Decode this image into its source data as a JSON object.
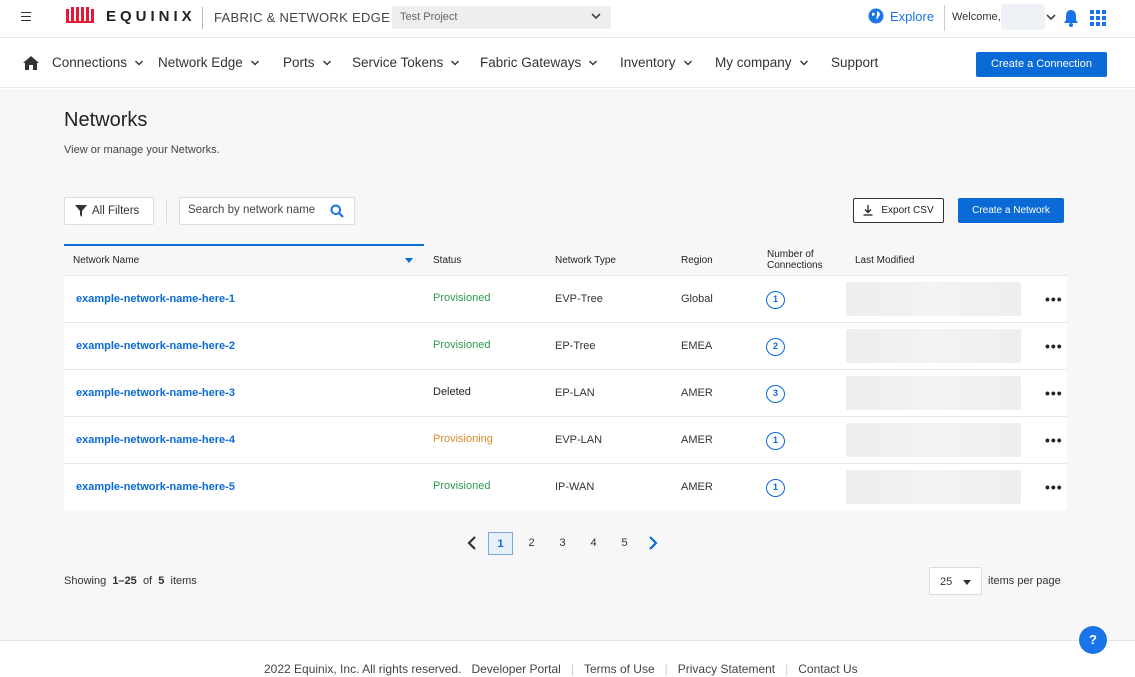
{
  "header": {
    "logo_text": "EQUINIX",
    "app_name": "FABRIC & NETWORK EDGE",
    "project": "Test Project",
    "explore_label": "Explore",
    "welcome_label": "Welcome,"
  },
  "nav": {
    "items": [
      {
        "label": "Connections",
        "has_menu": true
      },
      {
        "label": "Network Edge",
        "has_menu": true
      },
      {
        "label": "Ports",
        "has_menu": true
      },
      {
        "label": "Service Tokens",
        "has_menu": true
      },
      {
        "label": "Fabric Gateways",
        "has_menu": true
      },
      {
        "label": "Inventory",
        "has_menu": true
      },
      {
        "label": "My company",
        "has_menu": true
      },
      {
        "label": "Support",
        "has_menu": false
      }
    ],
    "create_connection_label": "Create a Connection"
  },
  "page": {
    "title": "Networks",
    "subtitle": "View or manage your Networks."
  },
  "toolbar": {
    "filters_label": "All Filters",
    "search_placeholder": "Search by network name",
    "export_label": "Export CSV",
    "create_network_label": "Create a Network"
  },
  "table": {
    "columns": [
      "Network Name",
      "Status",
      "Network Type",
      "Region",
      "Number of Connections",
      "Last Modified"
    ],
    "columns_line1": [
      "Network Name",
      "Status",
      "Network Type",
      "Region",
      "Number of",
      "Last Modified"
    ],
    "columns_line2": [
      "",
      "",
      "",
      "",
      "Connections",
      ""
    ],
    "rows": [
      {
        "name": "example-network-name-here-1",
        "status": "Provisioned",
        "type": "EVP-Tree",
        "region": "Global",
        "connections": "1"
      },
      {
        "name": "example-network-name-here-2",
        "status": "Provisioned",
        "type": "EP-Tree",
        "region": "EMEA",
        "connections": "2"
      },
      {
        "name": "example-network-name-here-3",
        "status": "Deleted",
        "type": "EP-LAN",
        "region": "AMER",
        "connections": "3"
      },
      {
        "name": "example-network-name-here-4",
        "status": "Provisioning",
        "type": "EVP-LAN",
        "region": "AMER",
        "connections": "1"
      },
      {
        "name": "example-network-name-here-5",
        "status": "Provisioned",
        "type": "IP-WAN",
        "region": "AMER",
        "connections": "1"
      }
    ],
    "row_menu_glyph": "•••"
  },
  "status_colors": {
    "Provisioned": "#2e9a4c",
    "Deleted": "#222222",
    "Provisioning": "#e0892a"
  },
  "pagination": {
    "pages": [
      "1",
      "2",
      "3",
      "4",
      "5"
    ],
    "current": "1",
    "showing_prefix": "Showing",
    "showing_range": "1–25",
    "showing_of": "of",
    "showing_total": "5",
    "showing_suffix": "items",
    "per_page": "25",
    "per_page_label": "items per page"
  },
  "help_label": "?",
  "footer": {
    "copyright": "2022 Equinix, Inc. All rights reserved.",
    "links": [
      "Developer Portal",
      "Terms of Use",
      "Privacy Statement",
      "Contact Us"
    ]
  },
  "icons": [
    "hamburger-icon",
    "equinix-logo",
    "chevron-down-icon",
    "globe-icon",
    "bell-icon",
    "apps-grid-icon",
    "home-icon",
    "filter-icon",
    "search-icon",
    "download-icon",
    "chevron-left-icon",
    "chevron-right-icon",
    "more-icon",
    "help-icon"
  ],
  "colors": {
    "brand_red": "#e31937",
    "accent_blue": "#0a6ad6"
  }
}
